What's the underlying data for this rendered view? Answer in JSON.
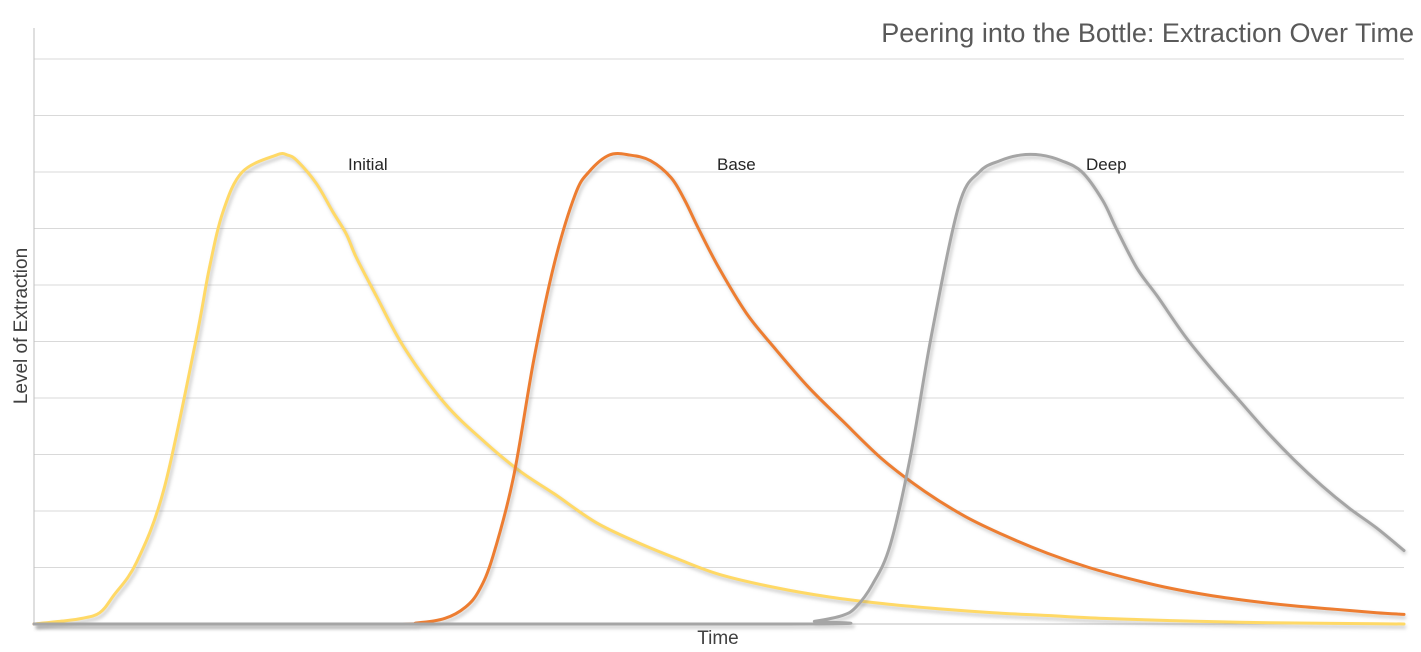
{
  "chart_data": {
    "type": "line",
    "title": "Peering into the Bottle: Extraction Over Time",
    "xlabel": "Time",
    "ylabel": "Level of Extraction",
    "xlim": [
      0,
      100
    ],
    "ylim": [
      0,
      10
    ],
    "grid": true,
    "legend": "none (series labelled inline next to peaks)",
    "series": [
      {
        "name": "Initial",
        "color": "#ffd966",
        "x": [
          0,
          2,
          3.5,
          4.8,
          5.8,
          7.5,
          9.5,
          11.8,
          12.8,
          13.8,
          15.2,
          17.7,
          18.5,
          19.2,
          20.6,
          21.8,
          22.8,
          23.5,
          25,
          27,
          30,
          33,
          35.5,
          38,
          41,
          44,
          47,
          50,
          54,
          58,
          62,
          66,
          70,
          74,
          78,
          83,
          88,
          93,
          98,
          100
        ],
        "y": [
          0,
          0.05,
          0.1,
          0.2,
          0.5,
          1.1,
          2.4,
          5.0,
          6.3,
          7.3,
          8.0,
          8.3,
          8.3,
          8.2,
          7.8,
          7.3,
          6.9,
          6.5,
          5.8,
          4.9,
          3.9,
          3.2,
          2.7,
          2.3,
          1.8,
          1.45,
          1.15,
          0.88,
          0.65,
          0.48,
          0.36,
          0.27,
          0.2,
          0.15,
          0.1,
          0.06,
          0.03,
          0.015,
          0.005,
          0
        ]
      },
      {
        "name": "Base",
        "color": "#ed7d31",
        "x": [
          0,
          25,
          28,
          30,
          31.5,
          32.5,
          33.5,
          35,
          36.5,
          38,
          39.5,
          40.5,
          42,
          43.5,
          45,
          46.5,
          47.5,
          48.5,
          50,
          52,
          54,
          56.5,
          59,
          62,
          65,
          68,
          71,
          74,
          77,
          80,
          83,
          86,
          89,
          92,
          95,
          98,
          100
        ],
        "y": [
          0,
          0,
          0.02,
          0.1,
          0.3,
          0.6,
          1.2,
          2.6,
          4.7,
          6.4,
          7.6,
          8.0,
          8.3,
          8.3,
          8.2,
          7.9,
          7.5,
          7.0,
          6.3,
          5.5,
          4.9,
          4.2,
          3.6,
          2.9,
          2.35,
          1.9,
          1.55,
          1.25,
          1.0,
          0.8,
          0.63,
          0.5,
          0.4,
          0.32,
          0.26,
          0.2,
          0.17
        ]
      },
      {
        "name": "Deep",
        "color": "#a5a5a5",
        "x": [
          0,
          55,
          57,
          59,
          60,
          61.2,
          62.5,
          64,
          65.5,
          67.5,
          69,
          70.5,
          72,
          73.5,
          75,
          76.5,
          78,
          79,
          80.5,
          82,
          84,
          86,
          88,
          90,
          92,
          94,
          96,
          98,
          100
        ],
        "y": [
          0,
          0,
          0.05,
          0.15,
          0.3,
          0.7,
          1.4,
          3.0,
          5.1,
          7.4,
          8.0,
          8.2,
          8.3,
          8.3,
          8.2,
          8.0,
          7.5,
          7.0,
          6.3,
          5.8,
          5.1,
          4.5,
          3.95,
          3.4,
          2.9,
          2.45,
          2.05,
          1.7,
          1.3
        ]
      }
    ]
  }
}
